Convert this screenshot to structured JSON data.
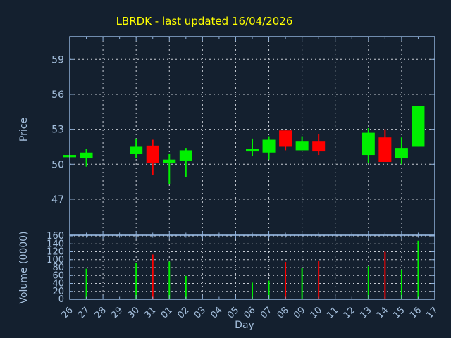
{
  "title": {
    "text": "LBRDK - last updated 16/04/2026"
  },
  "colors": {
    "background": "#14202f",
    "title": "#ffff00",
    "axis_border": "#8fb0d8",
    "tick_label": "#a5c0de",
    "grid": "#c9ced6",
    "up": "#00f000",
    "down": "#ff0000"
  },
  "chart_data": [
    {
      "type": "candlestick",
      "panel": "price",
      "ylabel": "Price",
      "yticks": [
        47,
        50,
        53,
        56,
        59
      ],
      "ylim": [
        44,
        61
      ],
      "grid": true,
      "x_categories": [
        "26",
        "27",
        "28",
        "29",
        "30",
        "31",
        "01",
        "02",
        "03",
        "04",
        "05",
        "06",
        "07",
        "08",
        "09",
        "10",
        "11",
        "12",
        "13",
        "14",
        "15",
        "16",
        "17"
      ],
      "candles": [
        {
          "day": "26",
          "open": 50.6,
          "high": 50.8,
          "low": 50.6,
          "close": 50.8,
          "direction": "up"
        },
        {
          "day": "27",
          "open": 50.5,
          "high": 51.3,
          "low": 49.8,
          "close": 51.0,
          "direction": "up"
        },
        {
          "day": "30",
          "open": 50.9,
          "high": 52.2,
          "low": 50.5,
          "close": 51.5,
          "direction": "up"
        },
        {
          "day": "31",
          "open": 51.6,
          "high": 52.1,
          "low": 49.1,
          "close": 50.1,
          "direction": "down"
        },
        {
          "day": "01",
          "open": 50.1,
          "high": 50.9,
          "low": 48.3,
          "close": 50.4,
          "direction": "up"
        },
        {
          "day": "02",
          "open": 50.3,
          "high": 51.4,
          "low": 48.9,
          "close": 51.2,
          "direction": "up"
        },
        {
          "day": "06",
          "open": 51.1,
          "high": 52.2,
          "low": 50.7,
          "close": 51.3,
          "direction": "up"
        },
        {
          "day": "07",
          "open": 51.0,
          "high": 52.4,
          "low": 50.4,
          "close": 52.1,
          "direction": "up"
        },
        {
          "day": "08",
          "open": 52.9,
          "high": 52.9,
          "low": 51.2,
          "close": 51.5,
          "direction": "down"
        },
        {
          "day": "09",
          "open": 51.2,
          "high": 52.4,
          "low": 51.2,
          "close": 52.0,
          "direction": "up"
        },
        {
          "day": "10",
          "open": 52.0,
          "high": 52.6,
          "low": 50.8,
          "close": 51.1,
          "direction": "down"
        },
        {
          "day": "13",
          "open": 50.8,
          "high": 53.1,
          "low": 50.1,
          "close": 52.7,
          "direction": "up"
        },
        {
          "day": "14",
          "open": 52.3,
          "high": 53.0,
          "low": 50.2,
          "close": 50.2,
          "direction": "down"
        },
        {
          "day": "15",
          "open": 50.5,
          "high": 52.3,
          "low": 50.0,
          "close": 51.4,
          "direction": "up"
        },
        {
          "day": "16",
          "open": 51.5,
          "high": 55.0,
          "low": 51.5,
          "close": 55.0,
          "direction": "up"
        }
      ]
    },
    {
      "type": "bar",
      "panel": "volume",
      "ylabel": "Volume (0000)",
      "xlabel": "Day",
      "yticks": [
        0,
        20,
        40,
        60,
        80,
        100,
        120,
        140,
        160
      ],
      "ylim": [
        0,
        162
      ],
      "grid": true,
      "bars": [
        {
          "day": "27",
          "value": 77,
          "direction": "up"
        },
        {
          "day": "30",
          "value": 92,
          "direction": "up"
        },
        {
          "day": "31",
          "value": 113,
          "direction": "down"
        },
        {
          "day": "01",
          "value": 95,
          "direction": "up"
        },
        {
          "day": "02",
          "value": 59,
          "direction": "up"
        },
        {
          "day": "06",
          "value": 42,
          "direction": "up"
        },
        {
          "day": "07",
          "value": 47,
          "direction": "up"
        },
        {
          "day": "08",
          "value": 94,
          "direction": "down"
        },
        {
          "day": "09",
          "value": 80,
          "direction": "up"
        },
        {
          "day": "10",
          "value": 97,
          "direction": "down"
        },
        {
          "day": "13",
          "value": 83,
          "direction": "up"
        },
        {
          "day": "14",
          "value": 120,
          "direction": "down"
        },
        {
          "day": "15",
          "value": 75,
          "direction": "up"
        },
        {
          "day": "16",
          "value": 148,
          "direction": "up"
        }
      ]
    }
  ]
}
